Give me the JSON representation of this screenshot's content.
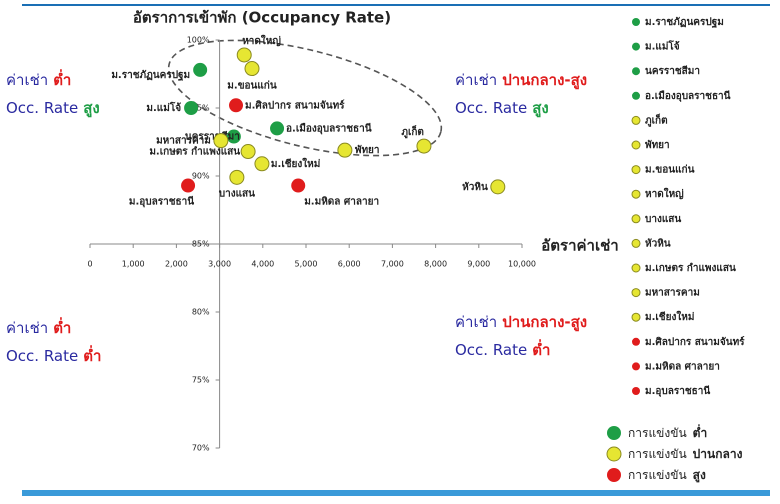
{
  "chart_data": {
    "type": "scatter",
    "title": "อัตราการเข้าพัก (Occupancy Rate)",
    "x_label": "อัตราค่าเช่า",
    "xlim": [
      0,
      10000
    ],
    "xticks": [
      0,
      {
        "value": 1000,
        "label": "1,000"
      },
      {
        "value": 2000,
        "label": "2,000"
      },
      {
        "value": 3000,
        "label": "3,000"
      },
      {
        "value": 4000,
        "label": "4,000"
      },
      {
        "value": 5000,
        "label": "5,000"
      },
      {
        "value": 6000,
        "label": "6,000"
      },
      {
        "value": 7000,
        "label": "7,000"
      },
      {
        "value": 8000,
        "label": "8,000"
      },
      {
        "value": 9000,
        "label": "9,000"
      },
      {
        "value": 10000,
        "label": "10,000"
      }
    ],
    "ylim": [
      70,
      100
    ],
    "yticks": [
      {
        "value": 70,
        "label": "70%"
      },
      {
        "value": 75,
        "label": "75%"
      },
      {
        "value": 80,
        "label": "80%"
      },
      {
        "value": 85,
        "label": "85%"
      },
      {
        "value": 90,
        "label": "90%"
      },
      {
        "value": 95,
        "label": "95%"
      },
      {
        "value": 100,
        "label": "100%"
      }
    ],
    "series": [
      {
        "name": "ม.ราชภัฏนครปฐม",
        "color": "#1e9e46",
        "x": [
          2550
        ],
        "values": [
          97.8
        ]
      },
      {
        "name": "ม.แม่โจ้",
        "color": "#1e9e46",
        "x": [
          2340
        ],
        "values": [
          95.0
        ]
      },
      {
        "name": "นครราชสีมา",
        "color": "#1e9e46",
        "x": [
          3330
        ],
        "values": [
          92.9
        ]
      },
      {
        "name": "อ.เมืองอุบลราชธานี",
        "color": "#1e9e46",
        "x": [
          4330
        ],
        "values": [
          93.5
        ]
      },
      {
        "name": "ภูเก็ต",
        "color": "#e6e632",
        "x": [
          7730
        ],
        "values": [
          92.2
        ]
      },
      {
        "name": "พัทยา",
        "color": "#e6e632",
        "x": [
          5900
        ],
        "values": [
          91.9
        ]
      },
      {
        "name": "ม.ขอนแก่น",
        "color": "#e6e632",
        "x": [
          3750
        ],
        "values": [
          97.9
        ]
      },
      {
        "name": "หาดใหญ่",
        "color": "#e6e632",
        "x": [
          3570
        ],
        "values": [
          98.9
        ]
      },
      {
        "name": "บางแสน",
        "color": "#e6e632",
        "x": [
          3400
        ],
        "values": [
          89.9
        ]
      },
      {
        "name": "หัวหิน",
        "color": "#e6e632",
        "x": [
          9440
        ],
        "values": [
          89.2
        ]
      },
      {
        "name": "ม.เกษตร กำแพงแสน",
        "color": "#e6e632",
        "x": [
          3660
        ],
        "values": [
          91.8
        ]
      },
      {
        "name": "มหาสารคาม",
        "color": "#e6e632",
        "x": [
          3030
        ],
        "values": [
          92.6
        ]
      },
      {
        "name": "ม.เชียงใหม่",
        "color": "#e6e632",
        "x": [
          3980
        ],
        "values": [
          90.9
        ]
      },
      {
        "name": "ม.ศิลปากร สนามจันทร์",
        "color": "#e01c1c",
        "x": [
          3380
        ],
        "values": [
          95.2
        ]
      },
      {
        "name": "ม.มหิดล ศาลายา",
        "color": "#e01c1c",
        "x": [
          4820
        ],
        "values": [
          89.3
        ]
      },
      {
        "name": "ม.อุบลราชธานี",
        "color": "#e01c1c",
        "x": [
          2270
        ],
        "values": [
          89.3
        ]
      }
    ],
    "quadrants": [
      {
        "lines": [
          [
            {
              "text": "ค่าเช่า",
              "color": "#2a2aa0"
            },
            {
              "text": "ต่ำ",
              "color": "#e01c1c"
            }
          ],
          [
            {
              "text": "Occ. Rate",
              "color": "#2a2aa0"
            },
            {
              "text": "สูง",
              "color": "#1e9e46"
            }
          ]
        ]
      },
      {
        "lines": [
          [
            {
              "text": "ค่าเช่า",
              "color": "#2a2aa0"
            },
            {
              "text": "ปานกลาง-สูง",
              "color": "#e01c1c"
            }
          ],
          [
            {
              "text": "Occ. Rate",
              "color": "#2a2aa0"
            },
            {
              "text": "สูง",
              "color": "#1e9e46"
            }
          ]
        ]
      },
      {
        "lines": [
          [
            {
              "text": "ค่าเช่า",
              "color": "#2a2aa0"
            },
            {
              "text": "ต่ำ",
              "color": "#e01c1c"
            }
          ],
          [
            {
              "text": "Occ. Rate",
              "color": "#2a2aa0"
            },
            {
              "text": "ต่ำ",
              "color": "#e01c1c"
            }
          ]
        ]
      },
      {
        "lines": [
          [
            {
              "text": "ค่าเช่า",
              "color": "#2a2aa0"
            },
            {
              "text": "ปานกลาง-สูง",
              "color": "#e01c1c"
            }
          ],
          [
            {
              "text": "Occ. Rate",
              "color": "#2a2aa0"
            },
            {
              "text": "ต่ำ",
              "color": "#e01c1c"
            }
          ]
        ]
      }
    ],
    "competition_legend": [
      {
        "color": "#1e9e46",
        "label": "การแข่งขัน",
        "level": "ต่ำ"
      },
      {
        "color": "#e6e632",
        "label": "การแข่งขัน",
        "level": "ปานกลาง"
      },
      {
        "color": "#e01c1c",
        "label": "การแข่งขัน",
        "level": "สูง"
      }
    ]
  }
}
